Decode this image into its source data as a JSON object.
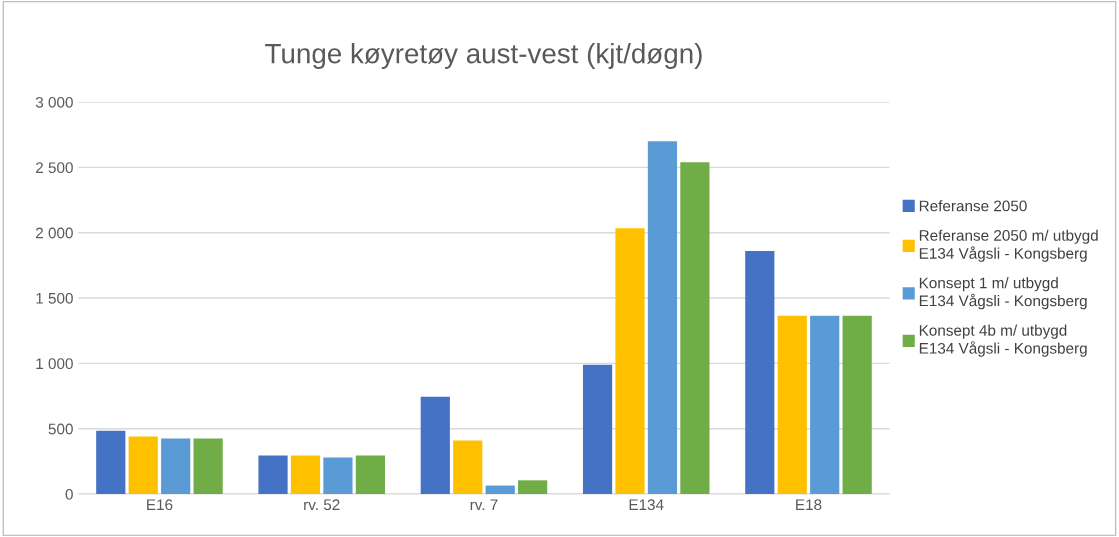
{
  "chart_data": {
    "type": "bar",
    "title": "Tunge køyretøy aust-vest (kjt/døgn)",
    "categories": [
      "E16",
      "rv. 52",
      "rv. 7",
      "E134",
      "E18"
    ],
    "series": [
      {
        "name": "Referanse 2050",
        "color": "#4472c4",
        "values": [
          485,
          295,
          745,
          990,
          1860
        ]
      },
      {
        "name": "Referanse 2050 m/ utbygd\nE134 Vågsli - Kongsberg",
        "color": "#ffc000",
        "values": [
          440,
          295,
          410,
          2035,
          1365
        ]
      },
      {
        "name": "Konsept 1 m/ utbygd\nE134 Vågsli - Kongsberg",
        "color": "#5b9bd5",
        "values": [
          425,
          280,
          65,
          2700,
          1365
        ]
      },
      {
        "name": "Konsept 4b m/ utbygd\nE134 Vågsli - Kongsberg",
        "color": "#70ad47",
        "values": [
          425,
          295,
          105,
          2540,
          1365
        ]
      }
    ],
    "ylim": [
      0,
      3000
    ],
    "yticks": [
      0,
      500,
      {
        "value": 1000,
        "label": "1 000"
      },
      {
        "value": 1500,
        "label": "1 500"
      },
      {
        "value": 2000,
        "label": "2 000"
      },
      {
        "value": 2500,
        "label": "2 500"
      },
      {
        "value": 3000,
        "label": "3 000"
      }
    ],
    "grid": "y",
    "legend": "right"
  }
}
